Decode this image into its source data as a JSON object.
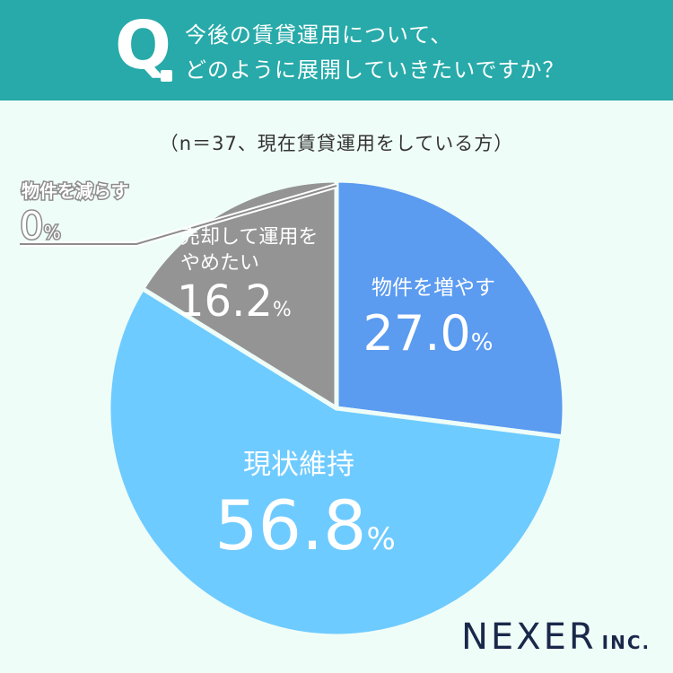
{
  "header": {
    "q_mark": "Q",
    "question_line1": "今後の賃貸運用について、",
    "question_line2": "どのように展開していきたいですか？"
  },
  "subtitle": "（n＝37、現在賃貸運用をしている方）",
  "chart_data": {
    "type": "pie",
    "unit": "%",
    "slices": [
      {
        "label": "物件を増やす",
        "value": 27.0,
        "display": "27.0",
        "color": "#5b9bf0"
      },
      {
        "label": "現状維持",
        "value": 56.8,
        "display": "56.8",
        "color": "#6ecbff"
      },
      {
        "label": "売却して運用をやめたい",
        "value": 16.2,
        "display": "16.2",
        "color": "#949494"
      },
      {
        "label": "物件を減らす",
        "value": 0,
        "display": "0",
        "color": "#949494"
      }
    ]
  },
  "brand": {
    "name": "NEXER",
    "suffix": "INC."
  }
}
